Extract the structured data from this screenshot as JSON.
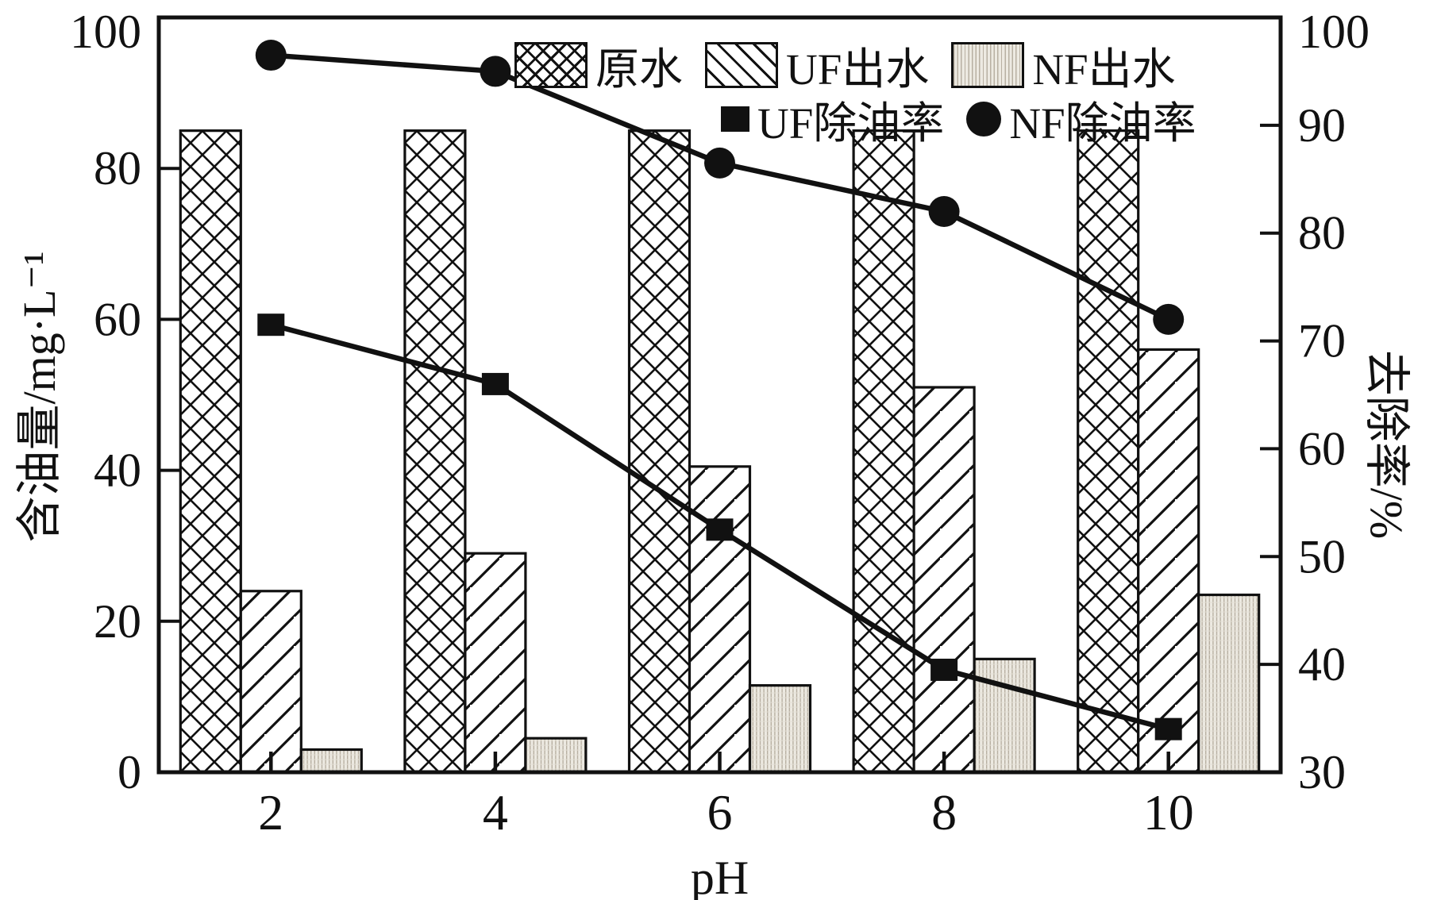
{
  "figure": {
    "background": "#ffffff",
    "ink_color": "#111111",
    "nf_bar_fill": "#edeae2",
    "nf_bar_line": "#b8b0a2"
  },
  "chart_data": {
    "type": "bar+line",
    "categories": [
      "2",
      "4",
      "6",
      "8",
      "10"
    ],
    "xlabel": "pH",
    "ylabel_left": "含油量/mg·L⁻¹",
    "ylabel_right": "去除率/%",
    "ylim_left": [
      0,
      100
    ],
    "yticks_left": [
      0,
      20,
      40,
      60,
      80,
      100
    ],
    "ylim_right": [
      30,
      100
    ],
    "yticks_right": [
      30,
      40,
      50,
      60,
      70,
      80,
      90,
      100
    ],
    "grid": "off",
    "legend_position": "top-inside",
    "bar_series": [
      {
        "name": "原水",
        "axis": "left",
        "pattern": "crosshatch",
        "values": [
          85,
          85,
          85,
          85,
          85
        ]
      },
      {
        "name": "UF出水",
        "axis": "left",
        "pattern": "diagonal",
        "values": [
          24,
          29,
          40.5,
          51,
          56
        ]
      },
      {
        "name": "NF出水",
        "axis": "left",
        "pattern": "dotted",
        "values": [
          3,
          4.5,
          11.5,
          15,
          23.5
        ]
      }
    ],
    "line_series": [
      {
        "name": "UF除油率",
        "axis": "right",
        "marker": "square",
        "values": [
          71.5,
          66,
          52.5,
          39.5,
          34
        ]
      },
      {
        "name": "NF除油率",
        "axis": "right",
        "marker": "circle",
        "values": [
          96.5,
          95,
          86.5,
          82,
          72
        ]
      }
    ]
  }
}
